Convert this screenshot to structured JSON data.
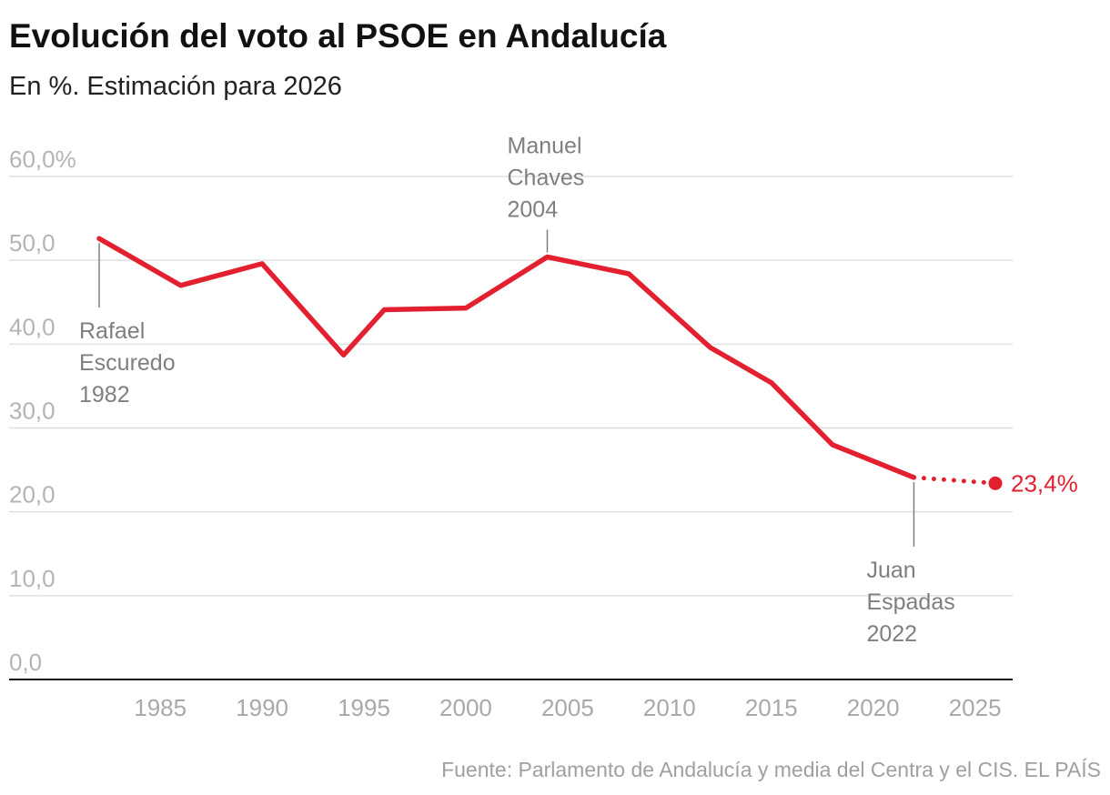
{
  "title": "Evolución del voto al PSOE en Andalucía",
  "subtitle": "En %. Estimación para 2026",
  "source": "Fuente: Parlamento de Andalucía y media del Centra y el CIS. EL PAÍS",
  "colors": {
    "line": "#e3202f",
    "grid": "#e0e0e0",
    "annotation": "#7f7f7f"
  },
  "chart_data": {
    "type": "line",
    "title": "Evolución del voto al PSOE en Andalucía",
    "subtitle": "En %. Estimación para 2026",
    "xlabel": "",
    "ylabel": "",
    "xlim": [
      1980,
      2027
    ],
    "ylim": [
      0,
      60
    ],
    "grid": true,
    "x_ticks": [
      1985,
      1990,
      1995,
      2000,
      2005,
      2010,
      2015,
      2020,
      2025
    ],
    "x_tick_labels": [
      "1985",
      "1990",
      "1995",
      "2000",
      "2005",
      "2010",
      "2015",
      "2020",
      "2025"
    ],
    "y_ticks": [
      0,
      10,
      20,
      30,
      40,
      50,
      60
    ],
    "y_tick_labels": [
      "0,0",
      "10,0",
      "20,0",
      "30,0",
      "40,0",
      "50,0",
      "60,0%"
    ],
    "series": [
      {
        "values": [
          [
            1982,
            52.6
          ],
          [
            1986,
            47.0
          ],
          [
            1990,
            49.6
          ],
          [
            1994,
            38.7
          ],
          [
            1996,
            44.1
          ],
          [
            2000,
            44.3
          ],
          [
            2004,
            50.4
          ],
          [
            2008,
            48.4
          ],
          [
            2012,
            39.6
          ],
          [
            2015,
            35.4
          ],
          [
            2018,
            28.0
          ],
          [
            2022,
            24.1
          ]
        ]
      },
      {
        "style": "dotted",
        "values": [
          [
            2022,
            24.1
          ],
          [
            2026,
            23.4
          ]
        ],
        "end_label": "23,4%"
      }
    ],
    "annotations": [
      {
        "x": 1982,
        "y": 52.6,
        "side": "below",
        "lines": [
          "Rafael",
          "Escuredo",
          "1982"
        ]
      },
      {
        "x": 2004,
        "y": 50.4,
        "side": "above",
        "lines": [
          "Manuel",
          "Chaves",
          "2004"
        ]
      },
      {
        "x": 2022,
        "y": 24.1,
        "side": "below",
        "lines": [
          "Juan",
          "Espadas",
          "2022"
        ]
      }
    ]
  }
}
